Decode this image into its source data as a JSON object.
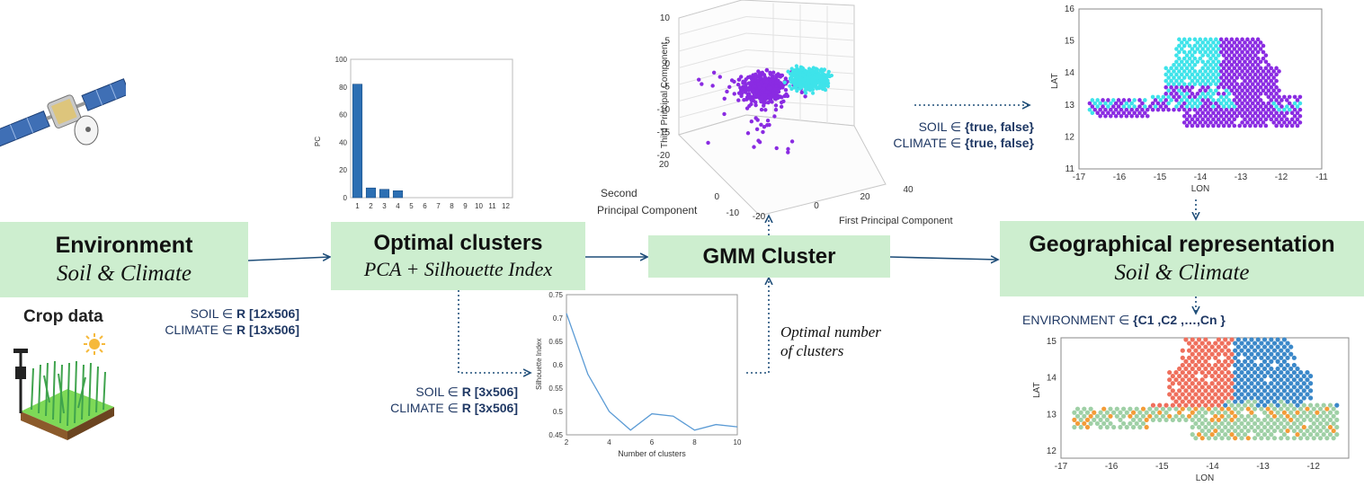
{
  "boxes": {
    "environment": {
      "title": "Environment",
      "subtitle": "Soil & Climate"
    },
    "optimal": {
      "title": "Optimal clusters",
      "subtitle": "PCA + Silhouette Index"
    },
    "gmm": {
      "title": "GMM Cluster"
    },
    "geo": {
      "title": "Geographical representation",
      "subtitle": "Soil & Climate"
    }
  },
  "labels": {
    "crop_data": "Crop data",
    "optimal_number": "Optimal number",
    "of_clusters": "of clusters"
  },
  "dims": {
    "in_soil_pre": "SOIL ∈ ",
    "in_soil_set": "R",
    "in_soil_post": " [12x506]",
    "in_climate_pre": "CLIMATE ∈ ",
    "in_climate_set": "R",
    "in_climate_post": " [13x506]",
    "pca_soil_pre": "SOIL ∈ ",
    "pca_soil_set": "R",
    "pca_soil_post": " [3x506]",
    "pca_climate_pre": "CLIMATE ∈ ",
    "pca_climate_set": "R",
    "pca_climate_post": " [3x506]",
    "bool_soil_pre": "SOIL ∈ ",
    "bool_soil_set": "{true, false}",
    "bool_climate_pre": "CLIMATE ∈ ",
    "bool_climate_set": "{true, false}",
    "env_pre": "ENVIRONMENT ∈ ",
    "env_set": "{C1 ,C2 ,…,Cn }"
  },
  "icons": {
    "satellite": "satellite-icon",
    "crop": "crop-field-icon",
    "sun": "sun-icon"
  },
  "colors": {
    "box_fill": "#cdeecf",
    "arrow": "#1f4e79",
    "bar": "#2c6fb3",
    "line": "#5b9bd5",
    "purple": "#8a2be2",
    "cyan": "#3ee3ea",
    "c_red": "#ef6f5c",
    "c_blue": "#3b88c9",
    "c_green": "#9fd0a6",
    "c_orange": "#f39c38"
  },
  "chart_data": [
    {
      "type": "bar",
      "categories": [
        "1",
        "2",
        "3",
        "4",
        "5",
        "6",
        "7",
        "8",
        "9",
        "10",
        "11",
        "12"
      ],
      "values": [
        82,
        7,
        6,
        5,
        0,
        0,
        0,
        0,
        0,
        0,
        0,
        0
      ],
      "ylabel": "PC",
      "yticks": [
        "0",
        "20",
        "40",
        "60",
        "80",
        "100"
      ],
      "ylim": [
        0,
        100
      ]
    },
    {
      "type": "scatter",
      "dimensions": 3,
      "xlabel": "First Principal Component",
      "ylabel_line1": "Second",
      "ylabel_line2": "Principal Component",
      "zlabel": "Third Principal Component",
      "xticks": [
        "-20",
        "0",
        "20",
        "40"
      ],
      "yticks": [
        "20",
        "0",
        "-10"
      ],
      "zticks": [
        "10",
        "5",
        "0",
        "-5",
        "-10",
        "-15",
        "-20"
      ],
      "series": [
        {
          "color": "#8a2be2",
          "center": [
            -5,
            0,
            -6
          ]
        },
        {
          "color": "#3ee3ea",
          "center": [
            12,
            0,
            -3
          ]
        }
      ]
    },
    {
      "type": "scatter",
      "xlabel": "LON",
      "ylabel": "LAT",
      "xlim": [
        -17,
        -11
      ],
      "ylim": [
        11,
        16
      ],
      "xticks": [
        "-17",
        "-16",
        "-15",
        "-14",
        "-13",
        "-12",
        "-11"
      ],
      "yticks": [
        "16",
        "15",
        "14",
        "13",
        "12",
        "11"
      ],
      "series": [
        {
          "color": "#8a2be2"
        },
        {
          "color": "#3ee3ea"
        }
      ]
    },
    {
      "type": "line",
      "x": [
        2,
        3,
        4,
        5,
        6,
        7,
        8,
        9,
        10
      ],
      "values": [
        0.71,
        0.58,
        0.5,
        0.46,
        0.495,
        0.49,
        0.46,
        0.472,
        0.467
      ],
      "xlabel": "Number of clusters",
      "ylabel": "Silhouette Index",
      "xticks": [
        "2",
        "4",
        "6",
        "8",
        "10"
      ],
      "yticks": [
        "0.75",
        "0.7",
        "0.65",
        "0.6",
        "0.55",
        "0.5",
        "0.45"
      ],
      "xlim": [
        2,
        10
      ],
      "ylim": [
        0.45,
        0.75
      ]
    },
    {
      "type": "scatter",
      "xlabel": "LON",
      "ylabel": "LAT",
      "xlim": [
        -17,
        -11.3
      ],
      "ylim": [
        11.8,
        15.1
      ],
      "xticks": [
        "-17",
        "-16",
        "-15",
        "-14",
        "-13",
        "-12"
      ],
      "yticks": [
        "15",
        "14",
        "13",
        "12"
      ],
      "series": [
        {
          "color": "#ef6f5c"
        },
        {
          "color": "#3b88c9"
        },
        {
          "color": "#9fd0a6"
        },
        {
          "color": "#f39c38"
        }
      ]
    }
  ]
}
